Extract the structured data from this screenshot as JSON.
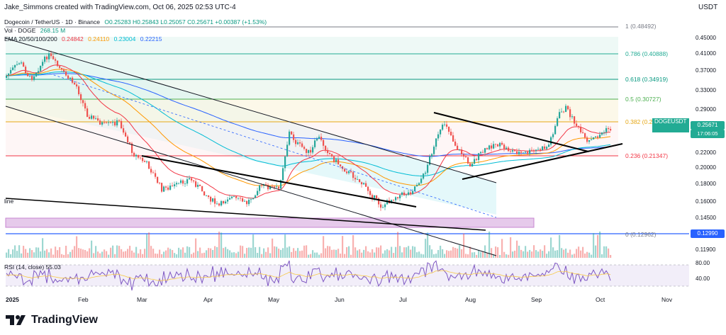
{
  "header": {
    "credit": "Jake_Simmons created with TradingView.com, Oct 06, 2025 02:53 UTC-4",
    "currency": "USDT"
  },
  "legend": {
    "symbol": "Dogecoin / TetherUS · 1D · Binance",
    "ohlc": "O0.25283 H0.25843 L0.25057 C0.25671 +0.00387 (+1.53%)",
    "vol_label": "Vol · DOGE",
    "vol_value": "268.15 M",
    "ema_label": "EMA 20/50/100/200",
    "ema_values": [
      "0.24842",
      "0.24110",
      "0.23004",
      "0.22215"
    ],
    "rsi_label": "RSI (14, close) 55.03"
  },
  "colors": {
    "up": "#26a69a",
    "down": "#ef5350",
    "ema20": "#f23645",
    "ema50": "#ff9800",
    "ema100": "#00bcd4",
    "ema200": "#2962ff",
    "rsi": "#7e57c2"
  },
  "fib_levels": [
    {
      "label": "1 (0.48492)",
      "color": "#787b86"
    },
    {
      "label": "0.786 (0.40888)",
      "color": "#22ab94"
    },
    {
      "label": "0.618 (0.34919)",
      "color": "#089981"
    },
    {
      "label": "0.5 (0.30727)",
      "color": "#4caf50"
    },
    {
      "label": "0.382 (0.26534)",
      "color": "#e6a817"
    },
    {
      "label": "0.236 (0.21347)",
      "color": "#f23645"
    },
    {
      "label": "0 (0.12962)",
      "color": "#787b86"
    }
  ],
  "annotation_line_label": "line",
  "price_ticks": [
    "0.45000",
    "0.41000",
    "0.37000",
    "0.33000",
    "0.29000",
    "0.25671",
    "0.22000",
    "0.20000",
    "0.18000",
    "0.16000",
    "0.14500",
    "0.12990",
    "0.11900",
    "80.00",
    "40.00"
  ],
  "current_price": {
    "symbol": "DOGEUSDT",
    "price": "0.25671",
    "countdown": "17:06:05"
  },
  "support_price": "0.12990",
  "time_labels": [
    "2025",
    "Feb",
    "Mar",
    "Apr",
    "May",
    "Jun",
    "Jul",
    "Aug",
    "Sep",
    "Oct",
    "Nov"
  ],
  "brand": "TradingView"
}
